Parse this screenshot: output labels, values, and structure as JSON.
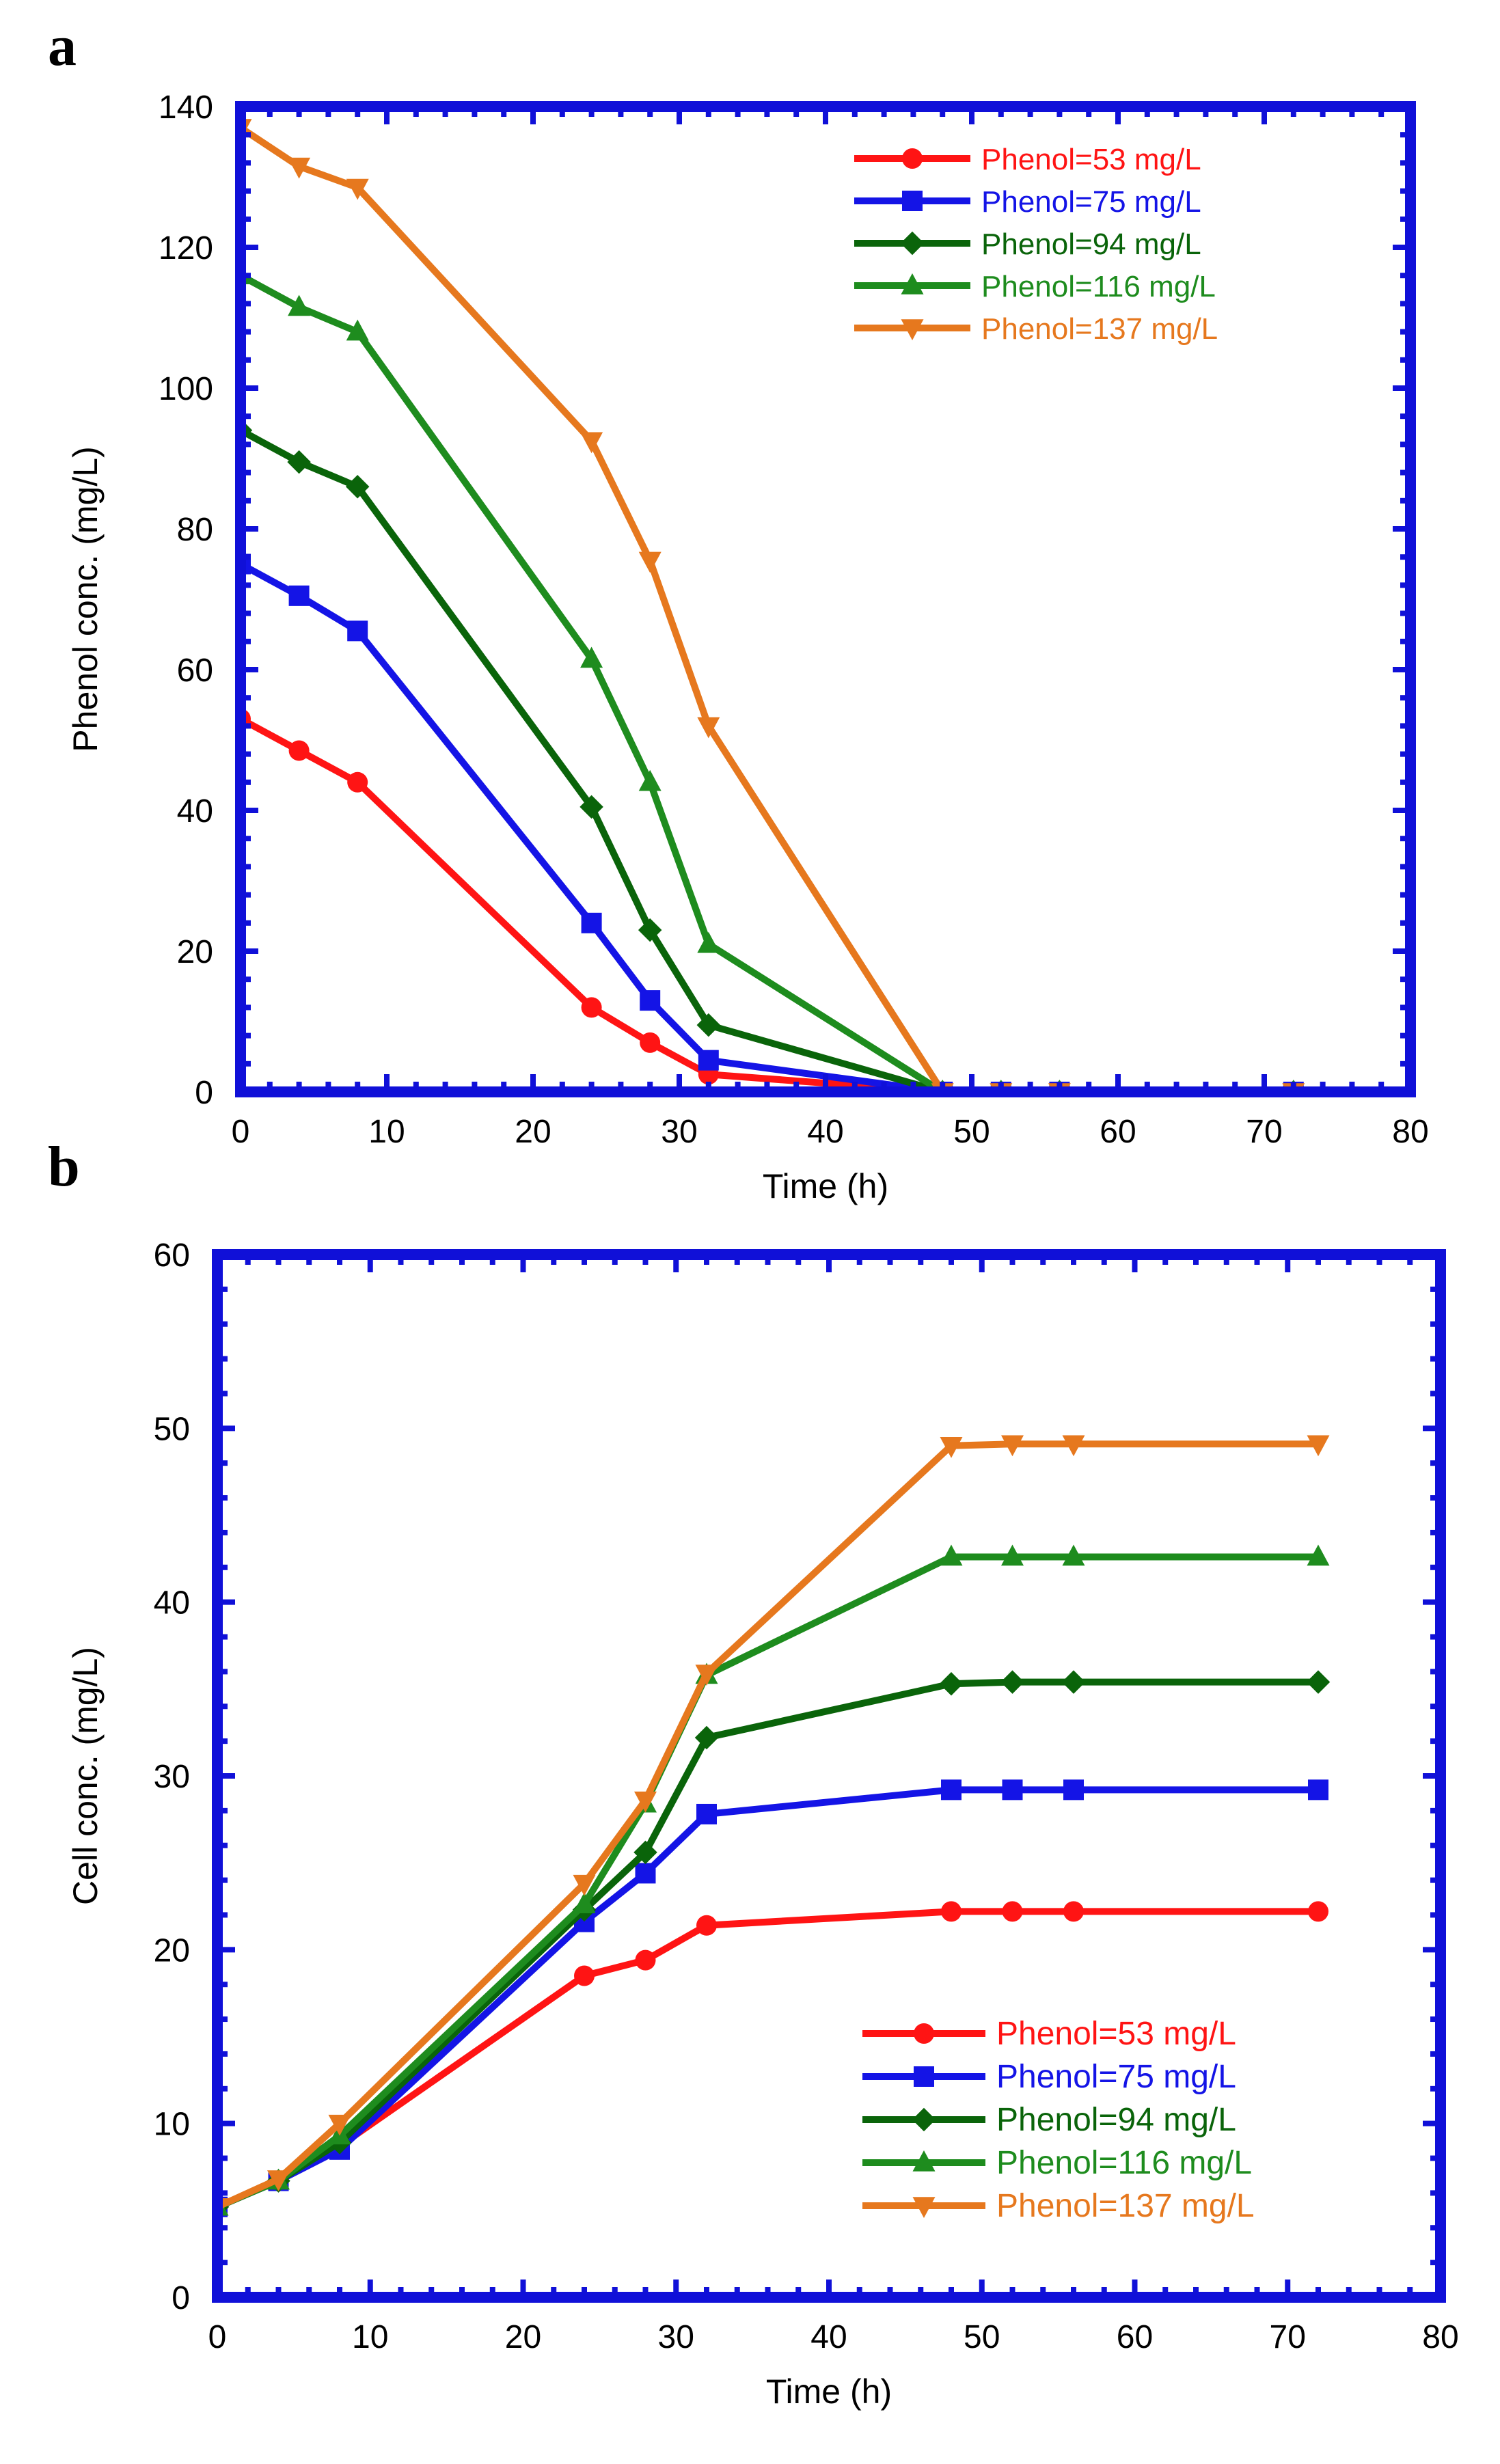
{
  "chart_data": [
    {
      "panel_label": "a",
      "type": "line",
      "xlabel": "Time (h)",
      "ylabel": "Phenol conc. (mg/L)",
      "xlim": [
        0,
        80
      ],
      "ylim": [
        0,
        140
      ],
      "xticks": [
        0,
        10,
        20,
        30,
        40,
        50,
        60,
        70,
        80
      ],
      "yticks": [
        0,
        20,
        40,
        60,
        80,
        100,
        120,
        140
      ],
      "grid": false,
      "legend_position": "top-right",
      "series": [
        {
          "name": "Phenol=53 mg/L",
          "color": "#ff1414",
          "marker": "circle",
          "x": [
            0,
            4,
            8,
            24,
            28,
            32,
            48,
            52,
            56,
            72
          ],
          "y": [
            53,
            48.5,
            44,
            12,
            7,
            2.5,
            0,
            0,
            0,
            0
          ]
        },
        {
          "name": "Phenol=75 mg/L",
          "color": "#1414e6",
          "marker": "square",
          "x": [
            0,
            4,
            8,
            24,
            28,
            32,
            48,
            52,
            56,
            72
          ],
          "y": [
            75,
            70.5,
            65.5,
            24,
            13,
            4.5,
            0,
            0,
            0,
            0
          ]
        },
        {
          "name": "Phenol=94 mg/L",
          "color": "#0a640a",
          "marker": "diamond",
          "x": [
            0,
            4,
            8,
            24,
            28,
            32,
            48,
            52,
            56,
            72
          ],
          "y": [
            94,
            89.5,
            86,
            40.5,
            23,
            9.5,
            0,
            0,
            0,
            0
          ]
        },
        {
          "name": "Phenol=116 mg/L",
          "color": "#1e8c1e",
          "marker": "triangle-up",
          "x": [
            0,
            4,
            8,
            24,
            28,
            32,
            48,
            52,
            56,
            72
          ],
          "y": [
            116,
            111.5,
            108,
            61.5,
            44,
            21,
            0,
            0,
            0,
            0
          ]
        },
        {
          "name": "Phenol=137 mg/L",
          "color": "#e6781e",
          "marker": "triangle-down",
          "x": [
            0,
            4,
            8,
            24,
            28,
            32,
            48,
            52,
            56,
            72
          ],
          "y": [
            137,
            131.5,
            128.5,
            92.5,
            75.5,
            52,
            0,
            0,
            0,
            0
          ]
        }
      ]
    },
    {
      "panel_label": "b",
      "type": "line",
      "xlabel": "Time (h)",
      "ylabel": "Cell conc. (mg/L)",
      "xlim": [
        0,
        80
      ],
      "ylim": [
        0,
        60
      ],
      "xticks": [
        0,
        10,
        20,
        30,
        40,
        50,
        60,
        70,
        80
      ],
      "yticks": [
        0,
        10,
        20,
        30,
        40,
        50,
        60
      ],
      "grid": false,
      "legend_position": "bottom-right",
      "series": [
        {
          "name": "Phenol=53 mg/L",
          "color": "#ff1414",
          "marker": "circle",
          "x": [
            0,
            4,
            8,
            24,
            28,
            32,
            48,
            52,
            56,
            72
          ],
          "y": [
            5.2,
            6.7,
            8.7,
            18.5,
            19.4,
            21.4,
            22.2,
            22.2,
            22.2,
            22.2
          ]
        },
        {
          "name": "Phenol=75 mg/L",
          "color": "#1414e6",
          "marker": "square",
          "x": [
            0,
            4,
            8,
            24,
            28,
            32,
            48,
            52,
            56,
            72
          ],
          "y": [
            5.2,
            6.7,
            8.5,
            21.6,
            24.4,
            27.8,
            29.2,
            29.2,
            29.2,
            29.2
          ]
        },
        {
          "name": "Phenol=94 mg/L",
          "color": "#0a640a",
          "marker": "diamond",
          "x": [
            0,
            4,
            8,
            24,
            28,
            32,
            48,
            52,
            56,
            72
          ],
          "y": [
            5.2,
            6.7,
            8.9,
            22.3,
            25.6,
            32.2,
            35.3,
            35.4,
            35.4,
            35.4
          ]
        },
        {
          "name": "Phenol=116 mg/L",
          "color": "#1e8c1e",
          "marker": "triangle-up",
          "x": [
            0,
            4,
            8,
            24,
            28,
            32,
            48,
            52,
            56,
            72
          ],
          "y": [
            5.2,
            6.7,
            9.3,
            22.6,
            28.4,
            35.8,
            42.6,
            42.6,
            42.6,
            42.6
          ]
        },
        {
          "name": "Phenol=137 mg/L",
          "color": "#e6781e",
          "marker": "triangle-down",
          "x": [
            0,
            4,
            8,
            24,
            28,
            32,
            48,
            52,
            56,
            72
          ],
          "y": [
            5.2,
            6.8,
            10,
            23.8,
            28.6,
            35.9,
            49,
            49.1,
            49.1,
            49.1
          ]
        }
      ]
    }
  ],
  "styles": {
    "frame_color": "#1010d8",
    "background": "#ffffff"
  }
}
